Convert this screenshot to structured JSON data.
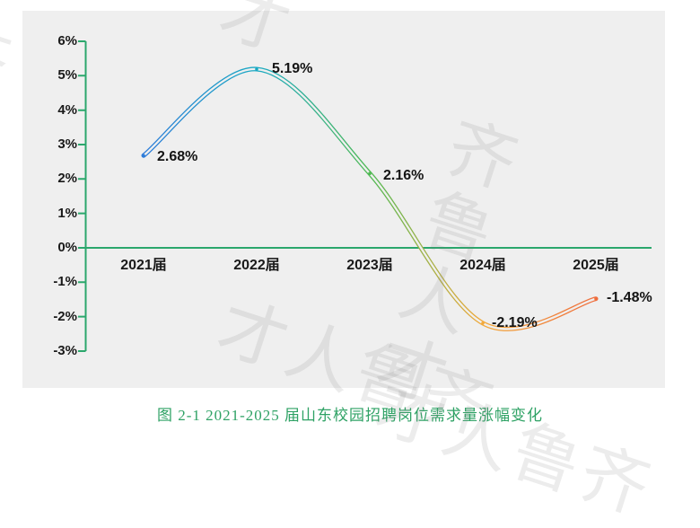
{
  "figure": {
    "caption": "图 2-1 2021-2025 届山东校园招聘岗位需求量涨幅变化",
    "caption_color": "#2fa265"
  },
  "watermark": {
    "text": "齐鲁人才",
    "color": "rgba(120,120,120,0.14)"
  },
  "chart_data": {
    "type": "line",
    "title": "",
    "xlabel": "",
    "ylabel": "",
    "categories": [
      "2021届",
      "2022届",
      "2023届",
      "2024届",
      "2025届"
    ],
    "values": [
      2.68,
      5.19,
      2.16,
      -2.19,
      -1.48
    ],
    "value_labels": [
      "2.68%",
      "5.19%",
      "2.16%",
      "-2.19%",
      "-1.48%"
    ],
    "ylim": [
      -3,
      6
    ],
    "ytick_labels": [
      "6%",
      "5%",
      "4%",
      "3%",
      "2%",
      "1%",
      "0%",
      "-1%",
      "-2%",
      "-3%"
    ],
    "grid": false,
    "legend": "none",
    "smooth": true,
    "line_style": "hollow-tube",
    "line_gradient": [
      "#2e7cd9",
      "#18a9c3",
      "#4fb953",
      "#f2a93b",
      "#ef6e3e"
    ],
    "axis_color": "#2ba76c",
    "panel_bg": "#efefef",
    "label_color": "#1a1a1a"
  }
}
